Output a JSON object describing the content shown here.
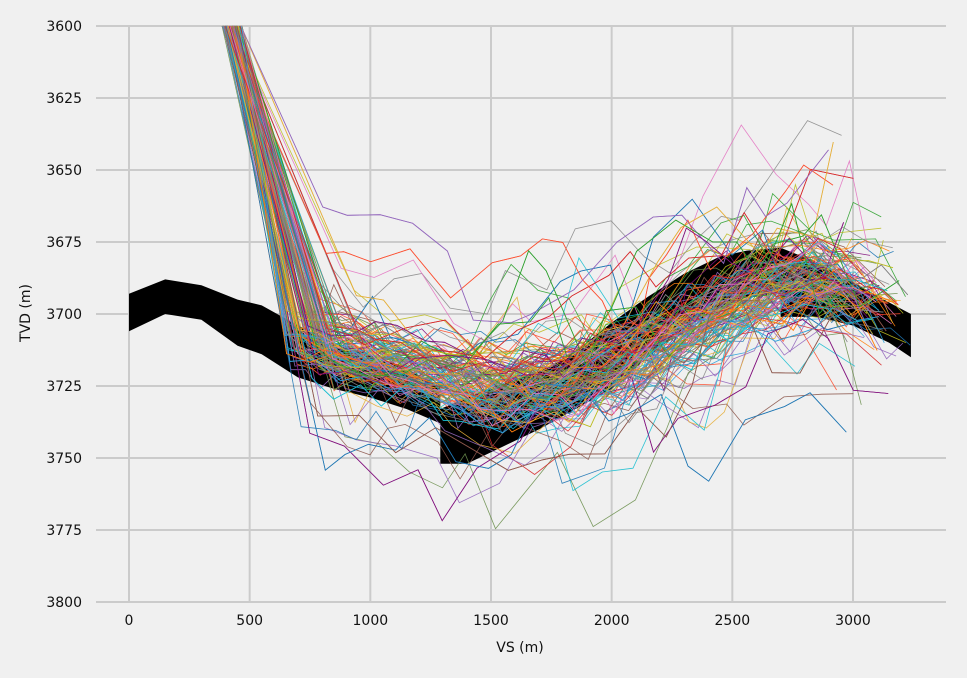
{
  "chart_data": {
    "type": "line",
    "xlabel": "VS (m)",
    "ylabel": "TVD (m)",
    "xlim": [
      -100,
      3400
    ],
    "ylim": [
      3600,
      3800
    ],
    "y_inverted": true,
    "grid": true,
    "legend": "none",
    "xticks": [
      0,
      500,
      1000,
      1500,
      2000,
      2500,
      3000
    ],
    "yticks": [
      3600,
      3625,
      3650,
      3675,
      3700,
      3725,
      3750,
      3775,
      3800
    ],
    "series": [
      {
        "role": "reference-band",
        "color": "#000000",
        "x": [
          0,
          150,
          300,
          450,
          550,
          700,
          850,
          1000,
          1150,
          1290,
          1290,
          1400,
          1550,
          1700,
          1850,
          2000,
          2150,
          2300,
          2450,
          2560,
          2700,
          2700,
          2850,
          3000,
          3150,
          3240
        ],
        "y_top": [
          3693,
          3688,
          3690,
          3695,
          3697,
          3704,
          3710,
          3714,
          3719,
          3725,
          3733,
          3729,
          3724,
          3720,
          3713,
          3703,
          3694,
          3686,
          3680,
          3678,
          3677,
          3677,
          3682,
          3689,
          3696,
          3700
        ],
        "y_bottom": [
          3706,
          3700,
          3702,
          3711,
          3714,
          3722,
          3726,
          3729,
          3733,
          3738,
          3752,
          3752,
          3746,
          3740,
          3733,
          3726,
          3715,
          3705,
          3698,
          3694,
          3693,
          3701,
          3701,
          3704,
          3710,
          3715
        ]
      },
      {
        "role": "simulated-trajectories",
        "count": 200,
        "palette": [
          "#1f77b4",
          "#ff7f0e",
          "#2ca02c",
          "#d62728",
          "#9467bd",
          "#8c564b",
          "#e377c2",
          "#7f7f7f",
          "#bcbd22",
          "#17becf",
          "#30a2da",
          "#fc4f30",
          "#e5ae38",
          "#6d904f",
          "#810f7c",
          "#8b8b8b"
        ],
        "start_vs_range": [
          385,
          470
        ],
        "end_vs_range": [
          2950,
          3240
        ]
      }
    ]
  }
}
